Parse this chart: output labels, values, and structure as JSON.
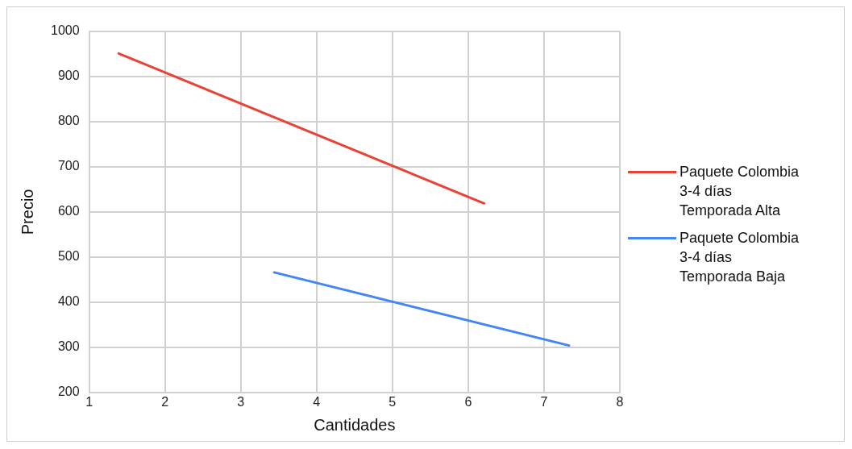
{
  "chart_data": {
    "type": "line",
    "xlabel": "Cantidades",
    "ylabel": "Precio",
    "series": [
      {
        "name": "Paquete Colombia 3-4 días Temporada Alta",
        "color": "#ea4335",
        "x": [
          1.39,
          6.21
        ],
        "values": [
          951,
          619
        ]
      },
      {
        "name": "Paquete Colombia 3-4 días Temporada Baja",
        "color": "#4285f4",
        "x": [
          3.44,
          7.33
        ],
        "values": [
          466,
          304
        ]
      }
    ],
    "xlim": [
      1,
      8
    ],
    "xticks": [
      1,
      2,
      3,
      4,
      5,
      6,
      7,
      8
    ],
    "ylim": [
      200,
      1000
    ],
    "yticks": [
      200,
      300,
      400,
      500,
      600,
      700,
      800,
      900,
      1000
    ],
    "grid": true,
    "legend": "right",
    "marker": "none",
    "line_style": "solid"
  }
}
